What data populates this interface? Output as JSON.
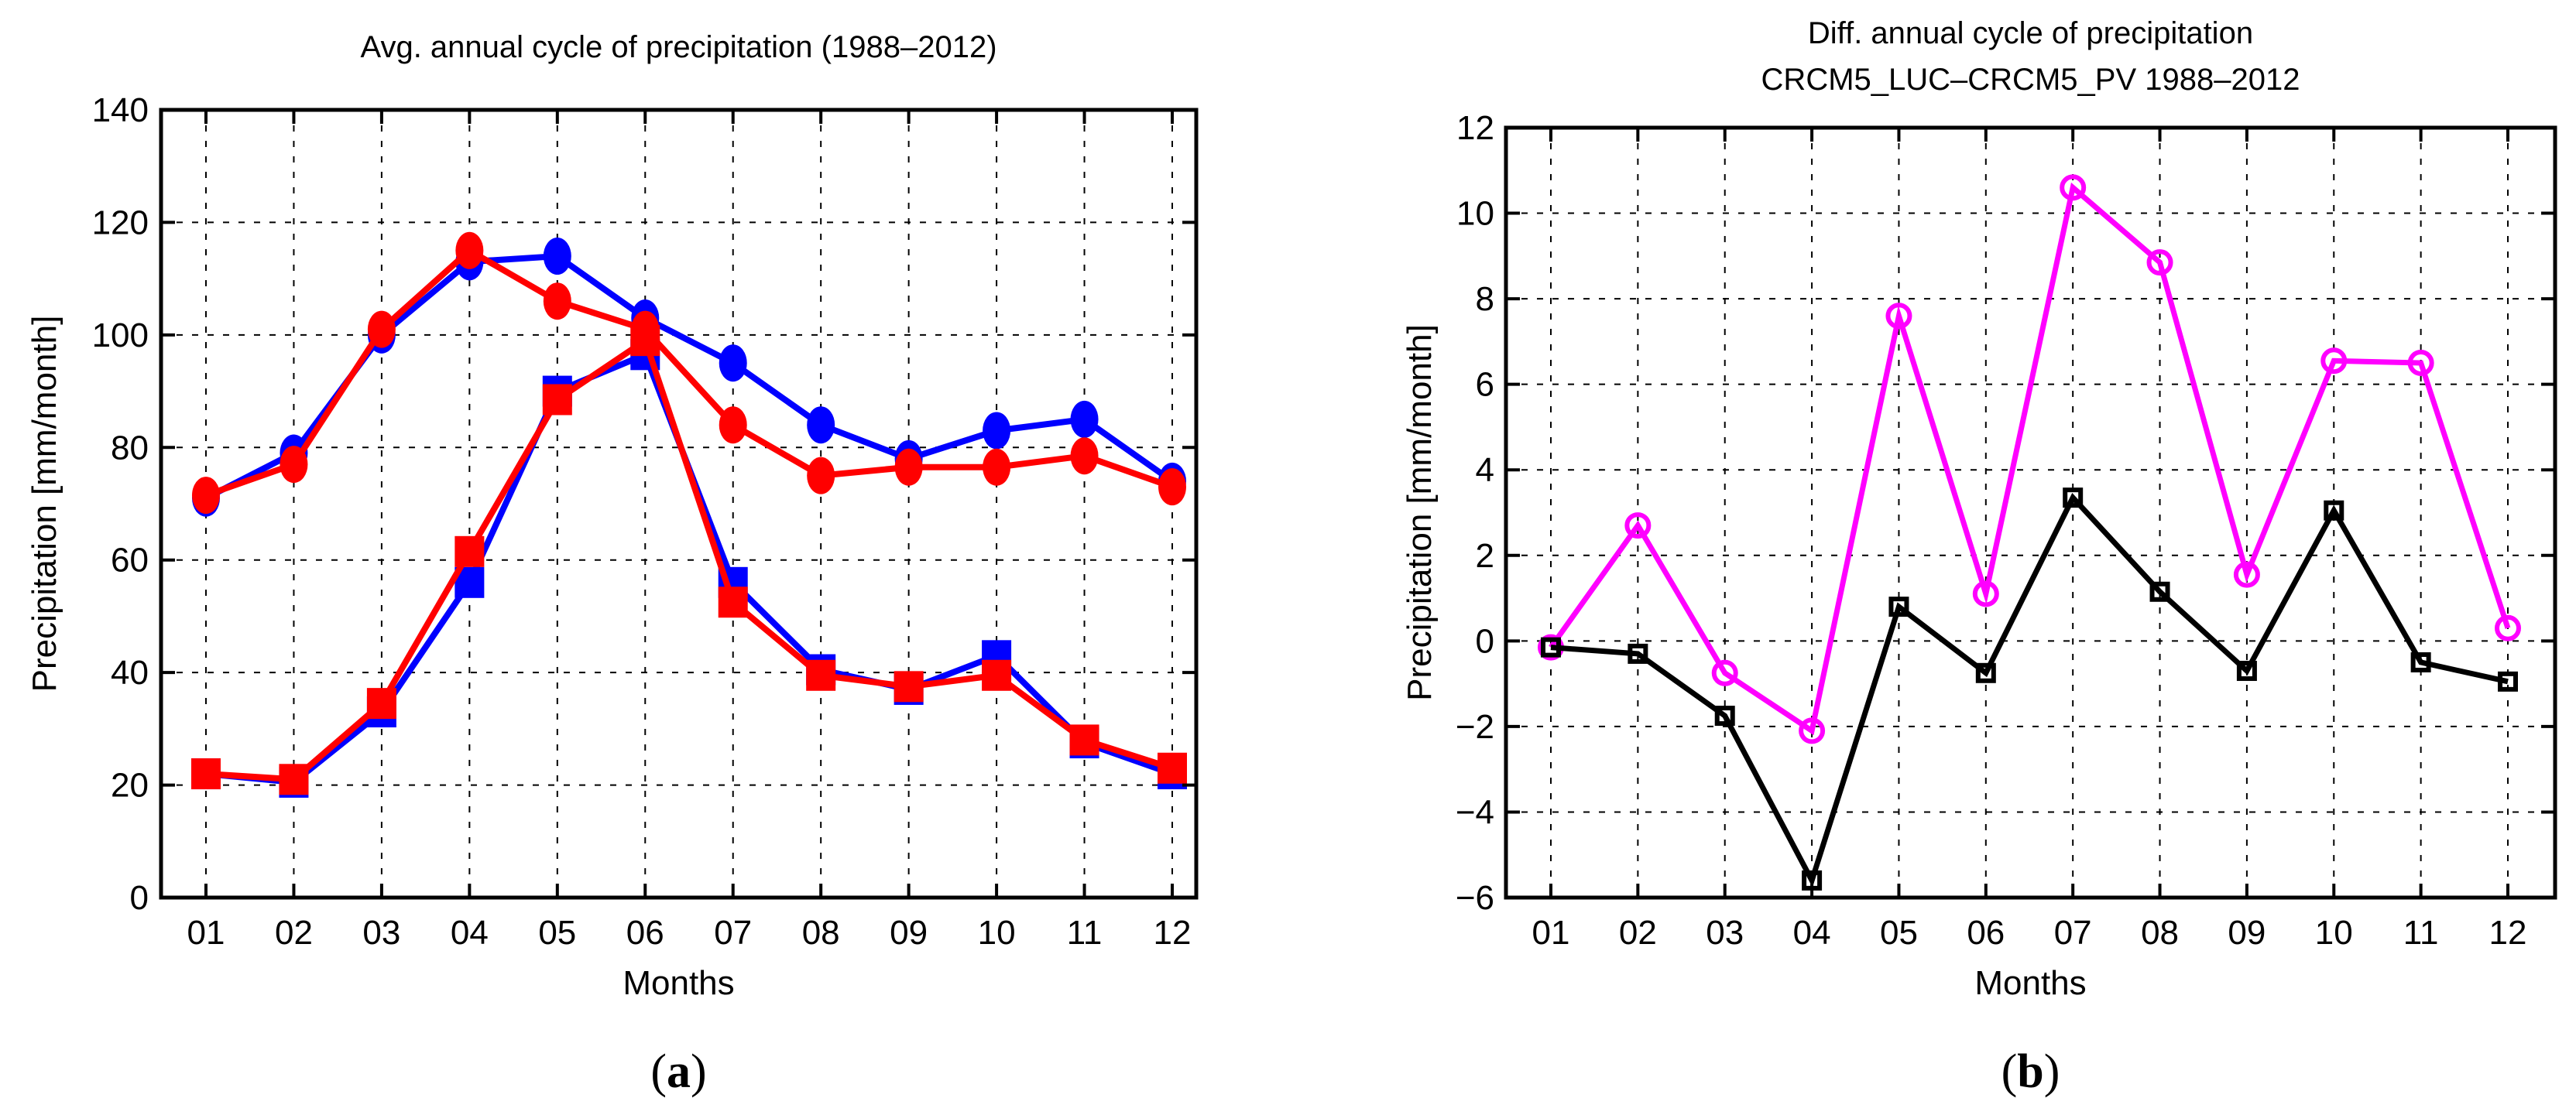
{
  "chart_data": [
    {
      "type": "line",
      "panel_label": "(a)",
      "title": "Avg. annual cycle of precipitation (1988–2012)",
      "title_lines": [
        "Avg. annual cycle of precipitation (1988–2012)"
      ],
      "xlabel": "Months",
      "ylabel": "Precipitation [mm/month]",
      "categories": [
        "01",
        "02",
        "03",
        "04",
        "05",
        "06",
        "07",
        "08",
        "09",
        "10",
        "11",
        "12"
      ],
      "ylim": [
        0,
        140
      ],
      "yticks": [
        0,
        20,
        40,
        60,
        80,
        100,
        120,
        140
      ],
      "grid": true,
      "legend": "none",
      "series": [
        {
          "name": "blue-circles",
          "color": "#0000ff",
          "marker": "filled-circle",
          "values": [
            71,
            79,
            100,
            113,
            114,
            103,
            95,
            84,
            78,
            83,
            85,
            74
          ]
        },
        {
          "name": "blue-squares",
          "color": "#0000ff",
          "marker": "filled-square",
          "values": [
            22,
            20.5,
            33,
            56,
            90,
            96.5,
            56,
            40.5,
            37,
            43,
            27.5,
            22
          ]
        },
        {
          "name": "red-circles",
          "color": "#ff0000",
          "marker": "filled-circle",
          "values": [
            71.5,
            77,
            101,
            115,
            106,
            101,
            84,
            75,
            76.5,
            76.5,
            78.5,
            73
          ]
        },
        {
          "name": "red-squares",
          "color": "#ff0000",
          "marker": "filled-square",
          "values": [
            22,
            21,
            34.5,
            61.5,
            88.5,
            99,
            52.5,
            39.5,
            37.5,
            39.5,
            28,
            23
          ]
        }
      ]
    },
    {
      "type": "line",
      "panel_label": "(b)",
      "title": "Diff. annual cycle of precipitation CRCM5_LUC–CRCM5_PV 1988–2012",
      "title_lines": [
        "Diff. annual cycle of precipitation",
        "CRCM5_LUC–CRCM5_PV 1988–2012"
      ],
      "xlabel": "Months",
      "ylabel": "Precipitation [mm/month]",
      "categories": [
        "01",
        "02",
        "03",
        "04",
        "05",
        "06",
        "07",
        "08",
        "09",
        "10",
        "11",
        "12"
      ],
      "ylim": [
        -6,
        12
      ],
      "yticks": [
        -6,
        -4,
        -2,
        0,
        2,
        4,
        6,
        8,
        10,
        12
      ],
      "grid": true,
      "legend": "none",
      "series": [
        {
          "name": "magenta-circles",
          "color": "#ff00ff",
          "marker": "open-circle",
          "values": [
            -0.15,
            2.7,
            -0.75,
            -2.1,
            7.6,
            1.1,
            10.6,
            8.85,
            1.55,
            6.55,
            6.5,
            0.3
          ]
        },
        {
          "name": "black-squares",
          "color": "#000000",
          "marker": "open-square",
          "values": [
            -0.15,
            -0.3,
            -1.75,
            -5.6,
            0.8,
            -0.75,
            3.35,
            1.15,
            -0.7,
            3.05,
            -0.5,
            -0.95
          ]
        }
      ]
    }
  ]
}
